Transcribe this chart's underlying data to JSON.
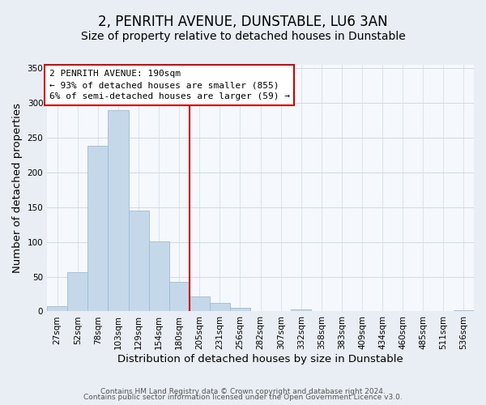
{
  "title": "2, PENRITH AVENUE, DUNSTABLE, LU6 3AN",
  "subtitle": "Size of property relative to detached houses in Dunstable",
  "xlabel": "Distribution of detached houses by size in Dunstable",
  "ylabel": "Number of detached properties",
  "bar_labels": [
    "27sqm",
    "52sqm",
    "78sqm",
    "103sqm",
    "129sqm",
    "154sqm",
    "180sqm",
    "205sqm",
    "231sqm",
    "256sqm",
    "282sqm",
    "307sqm",
    "332sqm",
    "358sqm",
    "383sqm",
    "409sqm",
    "434sqm",
    "460sqm",
    "485sqm",
    "511sqm",
    "536sqm"
  ],
  "bar_values": [
    8,
    57,
    238,
    290,
    145,
    101,
    42,
    21,
    12,
    5,
    0,
    0,
    3,
    1,
    0,
    0,
    0,
    0,
    0,
    0,
    2
  ],
  "bar_color": "#c5d8ea",
  "bar_edge_color": "#9abdd4",
  "property_line_x": 6.5,
  "annotation_title": "2 PENRITH AVENUE: 190sqm",
  "annotation_line1": "← 93% of detached houses are smaller (855)",
  "annotation_line2": "6% of semi-detached houses are larger (59) →",
  "annotation_box_color": "#ffffff",
  "annotation_box_edge": "#cc0000",
  "vline_color": "#cc0000",
  "ylim": [
    0,
    355
  ],
  "yticks": [
    0,
    50,
    100,
    150,
    200,
    250,
    300,
    350
  ],
  "footer1": "Contains HM Land Registry data © Crown copyright and database right 2024.",
  "footer2": "Contains public sector information licensed under the Open Government Licence v3.0.",
  "background_color": "#e8eef4",
  "plot_bg_color": "#f5f8fc",
  "grid_color": "#d0dae4",
  "title_fontsize": 12,
  "subtitle_fontsize": 10,
  "axis_label_fontsize": 9.5,
  "tick_fontsize": 7.5,
  "annotation_fontsize": 8,
  "footer_fontsize": 6.5
}
